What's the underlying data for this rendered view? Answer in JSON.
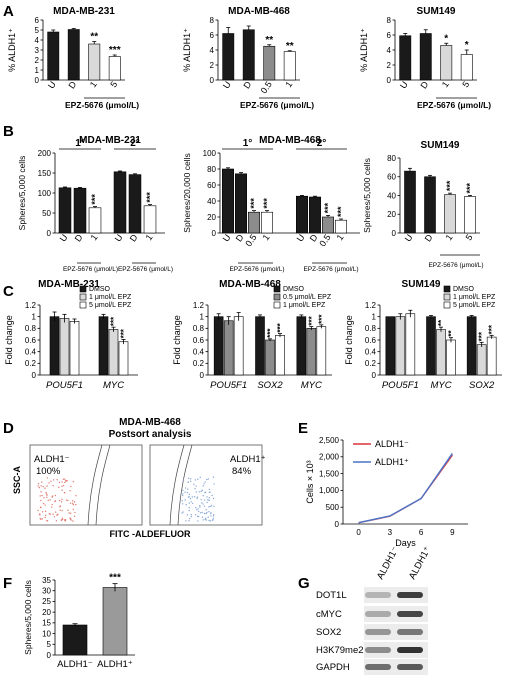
{
  "panels": {
    "A": {
      "label": "A",
      "xlabel": "EPZ-5676 (μmol/L)",
      "charts": [
        {
          "title": "MDA-MB-231",
          "ylabel": "% ALDH1⁺",
          "yticks": [
            "0",
            "1",
            "2",
            "3",
            "4",
            "5",
            "6"
          ],
          "ymax": 6,
          "categories": [
            "U",
            "D",
            "1",
            "5"
          ],
          "values": [
            4.8,
            5.05,
            3.6,
            2.35
          ],
          "errors": [
            0.2,
            0.1,
            0.25,
            0.15
          ],
          "colors": [
            "#1a1a1a",
            "#1a1a1a",
            "#d9d9d9",
            "#ffffff"
          ],
          "sig": [
            "",
            "",
            "**",
            "***"
          ]
        },
        {
          "title": "MDA-MB-468",
          "ylabel": "% ALDH1⁺",
          "yticks": [
            "0",
            "2",
            "4",
            "6",
            "8"
          ],
          "ymax": 8,
          "categories": [
            "U",
            "D",
            "0.5",
            "1"
          ],
          "values": [
            6.2,
            6.7,
            4.5,
            3.8
          ],
          "errors": [
            0.8,
            0.5,
            0.2,
            0.1
          ],
          "colors": [
            "#1a1a1a",
            "#1a1a1a",
            "#8c8c8c",
            "#ffffff"
          ],
          "sig": [
            "",
            "",
            "**",
            "**"
          ]
        },
        {
          "title": "SUM149",
          "ylabel": "% ALDH1⁺",
          "yticks": [
            "0",
            "2",
            "4",
            "6",
            "8"
          ],
          "ymax": 8,
          "categories": [
            "U",
            "D",
            "1",
            "5"
          ],
          "values": [
            5.9,
            6.2,
            4.6,
            3.4
          ],
          "errors": [
            0.3,
            0.5,
            0.3,
            0.6
          ],
          "colors": [
            "#1a1a1a",
            "#1a1a1a",
            "#d9d9d9",
            "#ffffff"
          ],
          "sig": [
            "",
            "",
            "*",
            "*"
          ]
        }
      ]
    },
    "B": {
      "label": "B",
      "xlabel": "EPZ-5676 (μmol/L)",
      "charts": [
        {
          "title": "MDA-MB-231",
          "ylabel": "Spheres/5,000 cells",
          "yticks": [
            "0",
            "50",
            "100",
            "150",
            "200"
          ],
          "ymax": 200,
          "groups": [
            "1°",
            "2°"
          ],
          "categories": [
            "U",
            "D",
            "1",
            "U",
            "D",
            "1"
          ],
          "values": [
            113,
            112,
            63,
            153,
            146,
            68
          ],
          "errors": [
            2,
            2,
            3,
            2,
            2,
            3
          ],
          "colors": [
            "#1a1a1a",
            "#1a1a1a",
            "#ffffff",
            "#1a1a1a",
            "#1a1a1a",
            "#ffffff"
          ],
          "sig": [
            "",
            "",
            "***",
            "",
            "",
            "***"
          ]
        },
        {
          "title": "MDA-MB-468",
          "ylabel": "Spheres/20,000 cells",
          "yticks": [
            "0",
            "20",
            "40",
            "60",
            "80",
            "100"
          ],
          "ymax": 100,
          "groups": [
            "1°",
            "2°"
          ],
          "categories": [
            "U",
            "D",
            "0.5",
            "1",
            "U",
            "D",
            "0.5",
            "1"
          ],
          "values": [
            80,
            74,
            26,
            26,
            46,
            45,
            20,
            16
          ],
          "errors": [
            1.5,
            1.5,
            2,
            2,
            1,
            1,
            2,
            1.5
          ],
          "colors": [
            "#1a1a1a",
            "#1a1a1a",
            "#8c8c8c",
            "#ffffff",
            "#1a1a1a",
            "#1a1a1a",
            "#8c8c8c",
            "#ffffff"
          ],
          "sig": [
            "",
            "",
            "***",
            "***",
            "",
            "",
            "***",
            "***"
          ]
        },
        {
          "title": "SUM149",
          "ylabel": "Spheres/5,000 cells",
          "yticks": [
            "0",
            "20",
            "40",
            "60",
            "80"
          ],
          "ymax": 80,
          "categories": [
            "U",
            "D",
            "1",
            "5"
          ],
          "values": [
            66,
            60,
            41,
            39
          ],
          "errors": [
            3,
            1.5,
            1.5,
            1
          ],
          "colors": [
            "#1a1a1a",
            "#1a1a1a",
            "#d9d9d9",
            "#ffffff"
          ],
          "sig": [
            "",
            "",
            "***",
            "***"
          ]
        }
      ]
    },
    "C": {
      "label": "C",
      "charts": [
        {
          "title": "MDA-MB-231",
          "ylabel": "Fold change",
          "yticks": [
            "0",
            "0.2",
            "0.4",
            "0.6",
            "0.8",
            "1",
            "1.2"
          ],
          "ymax": 1.2,
          "genes": [
            "POU5F1",
            "MYC"
          ],
          "legend": [
            "DMSO",
            "1 μmol/L EPZ",
            "5 μmol/L EPZ"
          ],
          "colors": [
            "#1a1a1a",
            "#d9d9d9",
            "#ffffff"
          ],
          "values": [
            [
              1.0,
              0.97,
              0.92
            ],
            [
              1.0,
              0.78,
              0.57
            ]
          ],
          "errors": [
            [
              0.08,
              0.07,
              0.04
            ],
            [
              0.04,
              0.04,
              0.04
            ]
          ],
          "sig": [
            [
              "",
              "",
              ""
            ],
            [
              "",
              "***",
              "***"
            ]
          ]
        },
        {
          "title": "MDA-MB-468",
          "ylabel": "Fold change",
          "yticks": [
            "0",
            "0.2",
            "0.4",
            "0.6",
            "0.8",
            "1",
            "1.2"
          ],
          "ymax": 1.2,
          "genes": [
            "POU5F1",
            "SOX2",
            "MYC"
          ],
          "legend": [
            "DMSO",
            "0.5 μmol/L EPZ",
            "1 μmol/L EPZ"
          ],
          "colors": [
            "#1a1a1a",
            "#8c8c8c",
            "#ffffff"
          ],
          "values": [
            [
              1.0,
              0.93,
              1.0
            ],
            [
              1.0,
              0.6,
              0.68
            ],
            [
              1.0,
              0.8,
              0.83
            ]
          ],
          "errors": [
            [
              0.05,
              0.07,
              0.07
            ],
            [
              0.03,
              0.02,
              0.03
            ],
            [
              0.03,
              0.03,
              0.03
            ]
          ],
          "sig": [
            [
              "",
              "",
              ""
            ],
            [
              "",
              "***",
              "***"
            ],
            [
              "",
              "***",
              "***"
            ]
          ]
        },
        {
          "title": "SUM149",
          "ylabel": "Fold change",
          "yticks": [
            "0",
            "0.2",
            "0.4",
            "0.6",
            "0.8",
            "1",
            "1.2"
          ],
          "ymax": 1.2,
          "genes": [
            "POU5F1",
            "MYC",
            "SOX2"
          ],
          "legend": [
            "DMSO",
            "1 μmol/L EPZ",
            "5 μmol/L EPZ"
          ],
          "colors": [
            "#1a1a1a",
            "#d9d9d9",
            "#ffffff"
          ],
          "values": [
            [
              1.0,
              1.0,
              1.05
            ],
            [
              1.0,
              0.78,
              0.6
            ],
            [
              1.0,
              0.52,
              0.65
            ]
          ],
          "errors": [
            [
              0.0,
              0.05,
              0.06
            ],
            [
              0.02,
              0.04,
              0.04
            ],
            [
              0.02,
              0.04,
              0.03
            ]
          ],
          "sig": [
            [
              "",
              "",
              ""
            ],
            [
              "",
              "**",
              "**"
            ],
            [
              "",
              "***",
              "***"
            ]
          ]
        }
      ]
    },
    "D": {
      "label": "D",
      "title_line1": "MDA-MB-468",
      "title_line2": "Postsort analysis",
      "ylabel": "SSC-A",
      "xlabel": "FITC -ALDEFLUOR",
      "left_gate_label": "ALDH1⁻",
      "left_gate_value": "100%",
      "right_gate_label": "ALDH1⁺",
      "right_gate_value": "84%"
    },
    "E": {
      "label": "E",
      "ylabel": "Cells × 10³",
      "xlabel": "Days",
      "yticks": [
        "0",
        "500",
        "1,000",
        "1,500",
        "2,000",
        "2,500"
      ],
      "xticks": [
        "0",
        "3",
        "6",
        "9"
      ],
      "series": [
        {
          "name": "ALDH1⁻",
          "color": "#d9363e",
          "x": [
            0,
            3,
            6,
            9
          ],
          "y": [
            40,
            230,
            760,
            2050
          ]
        },
        {
          "name": "ALDH1⁺",
          "color": "#4a74c9",
          "x": [
            0,
            3,
            6,
            9
          ],
          "y": [
            40,
            240,
            760,
            2100
          ]
        }
      ]
    },
    "F": {
      "label": "F",
      "ylabel": "Spheres/5,000 cells",
      "yticks": [
        "0",
        "5",
        "10",
        "15",
        "20",
        "25",
        "30",
        "35"
      ],
      "ymax": 35,
      "categories": [
        "ALDH1⁻",
        "ALDH1⁺"
      ],
      "values": [
        14,
        31.5
      ],
      "errors": [
        0.6,
        1.8
      ],
      "colors": [
        "#1a1a1a",
        "#9a9a9a"
      ],
      "sig": [
        "",
        "***"
      ]
    },
    "G": {
      "label": "G",
      "columns": [
        "ALDH1⁻",
        "ALDH1⁺"
      ],
      "rows": [
        "DOT1L",
        "cMYC",
        "SOX2",
        "H3K79me2",
        "GAPDH"
      ]
    }
  },
  "chart_data": [
    {
      "type": "bar",
      "title": "MDA-MB-231",
      "categories": [
        "U",
        "D",
        "1",
        "5"
      ],
      "values": [
        4.8,
        5.05,
        3.6,
        2.35
      ],
      "ylabel": "% ALDH1⁺",
      "xlabel": "EPZ-5676 (μmol/L)",
      "ylim": [
        0,
        6
      ]
    },
    {
      "type": "bar",
      "title": "MDA-MB-468",
      "categories": [
        "U",
        "D",
        "0.5",
        "1"
      ],
      "values": [
        6.2,
        6.7,
        4.5,
        3.8
      ],
      "ylabel": "% ALDH1⁺",
      "xlabel": "EPZ-5676 (μmol/L)",
      "ylim": [
        0,
        8
      ]
    },
    {
      "type": "bar",
      "title": "SUM149",
      "categories": [
        "U",
        "D",
        "1",
        "5"
      ],
      "values": [
        5.9,
        6.2,
        4.6,
        3.4
      ],
      "ylabel": "% ALDH1⁺",
      "xlabel": "EPZ-5676 (μmol/L)",
      "ylim": [
        0,
        8
      ]
    },
    {
      "type": "bar",
      "title": "MDA-MB-231",
      "categories": [
        "U",
        "D",
        "1",
        "U",
        "D",
        "1"
      ],
      "values": [
        113,
        112,
        63,
        153,
        146,
        68
      ],
      "ylabel": "Spheres/5,000 cells",
      "ylim": [
        0,
        200
      ]
    },
    {
      "type": "bar",
      "title": "MDA-MB-468",
      "categories": [
        "U",
        "D",
        "0.5",
        "1",
        "U",
        "D",
        "0.5",
        "1"
      ],
      "values": [
        80,
        74,
        26,
        26,
        46,
        45,
        20,
        16
      ],
      "ylabel": "Spheres/20,000 cells",
      "ylim": [
        0,
        100
      ]
    },
    {
      "type": "bar",
      "title": "SUM149",
      "categories": [
        "U",
        "D",
        "1",
        "5"
      ],
      "values": [
        66,
        60,
        41,
        39
      ],
      "ylabel": "Spheres/5,000 cells",
      "ylim": [
        0,
        80
      ]
    },
    {
      "type": "bar",
      "title": "MDA-MB-231",
      "categories": [
        "POU5F1",
        "MYC"
      ],
      "series": [
        {
          "name": "DMSO",
          "values": [
            1.0,
            1.0
          ]
        },
        {
          "name": "1 μmol/L EPZ",
          "values": [
            0.97,
            0.78
          ]
        },
        {
          "name": "5 μmol/L EPZ",
          "values": [
            0.92,
            0.57
          ]
        }
      ],
      "ylabel": "Fold change",
      "ylim": [
        0,
        1.2
      ]
    },
    {
      "type": "bar",
      "title": "MDA-MB-468",
      "categories": [
        "POU5F1",
        "SOX2",
        "MYC"
      ],
      "series": [
        {
          "name": "DMSO",
          "values": [
            1.0,
            1.0,
            1.0
          ]
        },
        {
          "name": "0.5 μmol/L EPZ",
          "values": [
            0.93,
            0.6,
            0.8
          ]
        },
        {
          "name": "1 μmol/L EPZ",
          "values": [
            1.0,
            0.68,
            0.83
          ]
        }
      ],
      "ylabel": "Fold change",
      "ylim": [
        0,
        1.2
      ]
    },
    {
      "type": "bar",
      "title": "SUM149",
      "categories": [
        "POU5F1",
        "MYC",
        "SOX2"
      ],
      "series": [
        {
          "name": "DMSO",
          "values": [
            1.0,
            1.0,
            1.0
          ]
        },
        {
          "name": "1 μmol/L EPZ",
          "values": [
            1.0,
            0.78,
            0.52
          ]
        },
        {
          "name": "5 μmol/L EPZ",
          "values": [
            1.05,
            0.6,
            0.65
          ]
        }
      ],
      "ylabel": "Fold change",
      "ylim": [
        0,
        1.2
      ]
    },
    {
      "type": "line",
      "x": [
        0,
        3,
        6,
        9
      ],
      "series": [
        {
          "name": "ALDH1⁻",
          "values": [
            40,
            230,
            760,
            2050
          ]
        },
        {
          "name": "ALDH1⁺",
          "values": [
            40,
            240,
            760,
            2100
          ]
        }
      ],
      "ylabel": "Cells × 10³",
      "xlabel": "Days",
      "ylim": [
        0,
        2500
      ]
    },
    {
      "type": "bar",
      "categories": [
        "ALDH1⁻",
        "ALDH1⁺"
      ],
      "values": [
        14,
        31.5
      ],
      "ylabel": "Spheres/5,000 cells",
      "ylim": [
        0,
        35
      ]
    }
  ]
}
